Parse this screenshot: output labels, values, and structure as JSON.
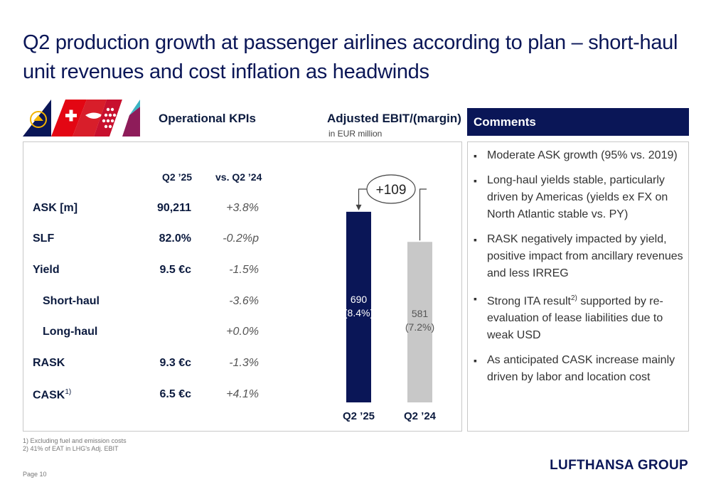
{
  "title": "Q2 production growth at passenger airlines according to plan – short-haul unit revenues and cost inflation as headwinds",
  "kpi": {
    "header": "Operational KPIs",
    "col_q225": "Q2 ’25",
    "col_vs": "vs. Q2 ’24",
    "rows": [
      {
        "label": "ASK [m]",
        "value": "90,211",
        "change": "+3.8%"
      },
      {
        "label": "SLF",
        "value": "82.0%",
        "change": "-0.2%p"
      },
      {
        "label": "Yield",
        "value": "9.5 €c",
        "change": "-1.5%"
      },
      {
        "label": "Short-haul",
        "value": "",
        "change": "-3.6%"
      },
      {
        "label": "Long-haul",
        "value": "",
        "change": "+0.0%"
      },
      {
        "label": "RASK",
        "value": "9.3 €c",
        "change": "-1.3%"
      },
      {
        "label": "CASK",
        "label_sup": "1)",
        "value": "6.5 €c",
        "change": "+4.1%"
      }
    ]
  },
  "ebit": {
    "header": "Adjusted EBIT/(margin)",
    "subheader": "in EUR million",
    "delta_label": "+109"
  },
  "chart_data": {
    "type": "bar",
    "categories": [
      "Q2 ’25",
      "Q2 ’24"
    ],
    "values": [
      690,
      581
    ],
    "bar_labels": [
      "690",
      "581"
    ],
    "margin_labels": [
      "(8.4%)",
      "(7.2%)"
    ],
    "colors": [
      "#0a1657",
      "#c8c8c8"
    ],
    "title": "Adjusted EBIT/(margin)",
    "ylabel": "in EUR million",
    "ylim": [
      0,
      700
    ]
  },
  "comments": {
    "header": "Comments",
    "items": [
      {
        "text": "Moderate ASK growth (95% vs. 2019)"
      },
      {
        "text": "Long-haul yields stable, particularly driven by Americas (yields ex FX on North Atlantic stable vs. PY)"
      },
      {
        "text": "RASK negatively impacted by yield, positive impact from ancillary revenues and less IRREG"
      },
      {
        "text_before": "Strong ITA result",
        "sup": "2)",
        "text_after": " supported by re-evaluation of lease liabilities due to weak USD"
      },
      {
        "text": "As anticipated CASK increase mainly driven by labor and location cost"
      }
    ]
  },
  "footnotes": [
    "1) Excluding fuel and emission costs",
    "2) 41% of EAT in LHG's Adj. EBIT"
  ],
  "page": "Page 10",
  "brand": "LUFTHANSA GROUP",
  "colors": {
    "navy": "#0a1657",
    "grey_bar": "#c8c8c8",
    "swiss_red": "#e30613",
    "eurowings_purple": "#8e1c5a"
  }
}
